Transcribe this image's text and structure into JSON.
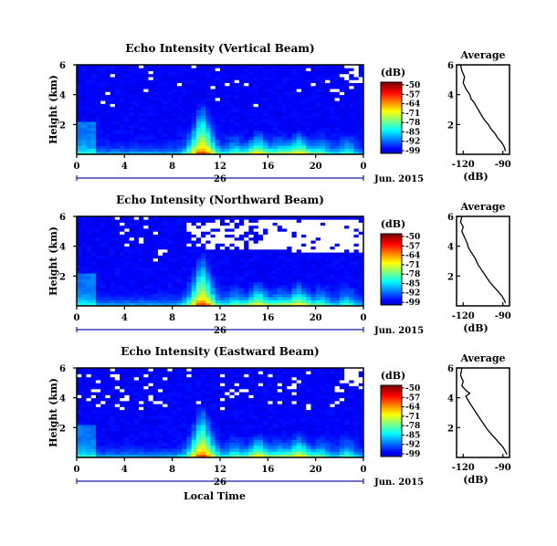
{
  "chart_data": [
    {
      "type": "heatmap",
      "title": "Echo Intensity (Vertical Beam)",
      "ylabel": "Height (km)",
      "yticks": [
        "6",
        "4",
        "2"
      ],
      "xticks": [
        "0",
        "4",
        "8",
        "12",
        "16",
        "20",
        "0"
      ],
      "xlim": [
        0,
        24
      ],
      "ylim": [
        0,
        6
      ],
      "date_label": "26",
      "month_label": "Jun. 2015",
      "colorbar": {
        "unit": "(dB)",
        "ticks": [
          "-50",
          "-57",
          "-64",
          "-71",
          "-78",
          "-85",
          "-92",
          "-99"
        ]
      },
      "peaks_hours": [
        10.5,
        15.2,
        18.6
      ],
      "sparse_missing": true,
      "profile": {
        "title": "Average",
        "xlabel": "(dB)",
        "xticks": [
          "-120",
          "-90"
        ],
        "yticks": [
          "6",
          "4",
          "2"
        ],
        "points": [
          [
            -122,
            6.0
          ],
          [
            -121,
            5.6
          ],
          [
            -119,
            5.2
          ],
          [
            -120,
            4.8
          ],
          [
            -118,
            4.4
          ],
          [
            -115,
            4.0
          ],
          [
            -114,
            3.7
          ],
          [
            -112,
            3.5
          ],
          [
            -110,
            3.2
          ],
          [
            -108,
            2.9
          ],
          [
            -106,
            2.6
          ],
          [
            -104,
            2.3
          ],
          [
            -101,
            2.0
          ],
          [
            -99,
            1.7
          ],
          [
            -96,
            1.4
          ],
          [
            -94,
            1.1
          ],
          [
            -91,
            0.8
          ],
          [
            -89,
            0.5
          ],
          [
            -88,
            0.2
          ]
        ]
      }
    },
    {
      "type": "heatmap",
      "title": "Echo Intensity (Northward Beam)",
      "ylabel": "Height (km)",
      "yticks": [
        "6",
        "4",
        "2"
      ],
      "xticks": [
        "0",
        "4",
        "8",
        "12",
        "16",
        "20",
        "0"
      ],
      "xlim": [
        0,
        24
      ],
      "ylim": [
        0,
        6
      ],
      "date_label": "26",
      "month_label": "Jun. 2015",
      "colorbar": {
        "unit": "(dB)",
        "ticks": [
          "-50",
          "-57",
          "-64",
          "-71",
          "-78",
          "-85",
          "-92",
          "-99"
        ]
      },
      "peaks_hours": [
        10.5,
        15.2,
        18.6
      ],
      "missing_band_km": [
        3.3,
        5.8
      ],
      "profile": {
        "title": "Average",
        "xlabel": "(dB)",
        "xticks": [
          "-120",
          "-90"
        ],
        "yticks": [
          "6",
          "4",
          "2"
        ],
        "points": [
          [
            -121,
            6.0
          ],
          [
            -122,
            5.6
          ],
          [
            -120,
            5.3
          ],
          [
            -121,
            5.0
          ],
          [
            -119,
            4.6
          ],
          [
            -117,
            4.2
          ],
          [
            -116,
            3.9
          ],
          [
            -114,
            3.6
          ],
          [
            -111,
            3.2
          ],
          [
            -109,
            2.8
          ],
          [
            -106,
            2.4
          ],
          [
            -103,
            2.0
          ],
          [
            -100,
            1.6
          ],
          [
            -97,
            1.3
          ],
          [
            -94,
            1.0
          ],
          [
            -91,
            0.7
          ],
          [
            -89,
            0.4
          ],
          [
            -88,
            0.2
          ]
        ]
      }
    },
    {
      "type": "heatmap",
      "title": "Echo Intensity (Eastward Beam)",
      "ylabel": "Height (km)",
      "yticks": [
        "6",
        "4",
        "2"
      ],
      "xticks": [
        "0",
        "4",
        "8",
        "12",
        "16",
        "20",
        "0"
      ],
      "xlim": [
        0,
        24
      ],
      "ylim": [
        0,
        6
      ],
      "date_label": "26",
      "month_label": "Jun. 2015",
      "xlabel": "Local Time",
      "colorbar": {
        "unit": "(dB)",
        "ticks": [
          "-50",
          "-57",
          "-64",
          "-71",
          "-78",
          "-85",
          "-92",
          "-99"
        ]
      },
      "peaks_hours": [
        10.5,
        15.2,
        18.6
      ],
      "sparse_missing": true,
      "profile": {
        "title": "Average",
        "xlabel": "(dB)",
        "xticks": [
          "-120",
          "-90"
        ],
        "yticks": [
          "6",
          "4",
          "2"
        ],
        "points": [
          [
            -121,
            6.0
          ],
          [
            -122,
            5.5
          ],
          [
            -120,
            5.1
          ],
          [
            -121,
            4.8
          ],
          [
            -118,
            4.5
          ],
          [
            -115,
            4.3
          ],
          [
            -118,
            4.1
          ],
          [
            -116,
            3.8
          ],
          [
            -114,
            3.5
          ],
          [
            -111,
            3.1
          ],
          [
            -108,
            2.7
          ],
          [
            -105,
            2.3
          ],
          [
            -102,
            1.9
          ],
          [
            -99,
            1.6
          ],
          [
            -96,
            1.3
          ],
          [
            -93,
            1.0
          ],
          [
            -90,
            0.7
          ],
          [
            -88,
            0.4
          ],
          [
            -87,
            0.2
          ]
        ]
      }
    }
  ]
}
